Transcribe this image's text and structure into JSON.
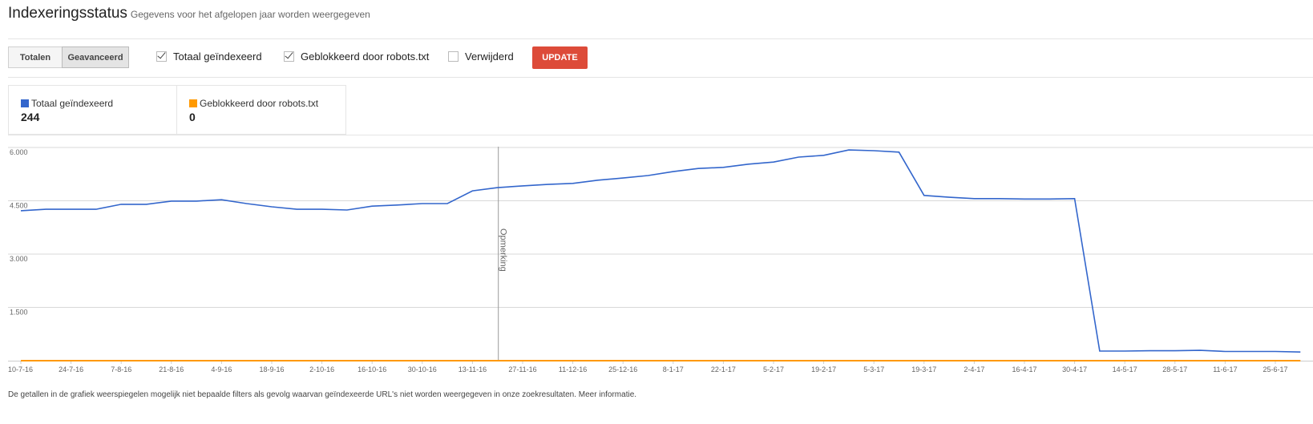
{
  "header": {
    "title": "Indexeringsstatus",
    "subtitle": "Gegevens voor het afgelopen jaar worden weergegeven"
  },
  "toolbar": {
    "tabs": [
      "Totalen",
      "Geavanceerd"
    ],
    "checkboxes": [
      {
        "label": "Totaal geïndexeerd",
        "checked": true
      },
      {
        "label": "Geblokkeerd door robots.txt",
        "checked": true
      },
      {
        "label": "Verwijderd",
        "checked": false
      }
    ],
    "button": "UPDATE"
  },
  "summary": {
    "values": [
      244,
      0
    ]
  },
  "chart_data": {
    "type": "line",
    "categories": [
      "10-7-16",
      null,
      "24-7-16",
      null,
      "7-8-16",
      null,
      "21-8-16",
      null,
      "4-9-16",
      null,
      "18-9-16",
      null,
      "2-10-16",
      null,
      "16-10-16",
      null,
      "30-10-16",
      null,
      "13-11-16",
      null,
      "27-11-16",
      null,
      "11-12-16",
      null,
      "25-12-16",
      null,
      "8-1-17",
      null,
      "22-1-17",
      null,
      "5-2-17",
      null,
      "19-2-17",
      null,
      "5-3-17",
      null,
      "19-3-17",
      null,
      "2-4-17",
      null,
      "16-4-17",
      null,
      "30-4-17",
      null,
      "14-5-17",
      null,
      "28-5-17",
      null,
      "11-6-17",
      null,
      "25-6-17",
      null
    ],
    "series": [
      {
        "name": "Totaal geïndexeerd",
        "color": "#3366cc",
        "values": [
          4220,
          4260,
          4260,
          4260,
          4400,
          4400,
          4490,
          4490,
          4530,
          4420,
          4330,
          4260,
          4260,
          4240,
          4350,
          4380,
          4420,
          4420,
          4780,
          4870,
          4920,
          4960,
          4990,
          5080,
          5140,
          5210,
          5320,
          5410,
          5440,
          5530,
          5590,
          5730,
          5780,
          5930,
          5910,
          5870,
          4650,
          4600,
          4560,
          4560,
          4550,
          4550,
          4560,
          270,
          270,
          280,
          280,
          290,
          260,
          260,
          260,
          244
        ]
      },
      {
        "name": "Geblokkeerd door robots.txt",
        "color": "#ff9900",
        "values": [
          0,
          0,
          0,
          0,
          0,
          0,
          0,
          0,
          0,
          0,
          0,
          0,
          0,
          0,
          0,
          0,
          0,
          0,
          0,
          0,
          0,
          0,
          0,
          0,
          0,
          0,
          0,
          0,
          0,
          0,
          0,
          0,
          0,
          0,
          0,
          0,
          0,
          0,
          0,
          0,
          0,
          0,
          0,
          0,
          0,
          0,
          0,
          0,
          0,
          0,
          0,
          0
        ]
      }
    ],
    "ylim": [
      0,
      6000
    ],
    "yticks": [
      {
        "value": 1500,
        "label": "1.500"
      },
      {
        "value": 3000,
        "label": "3.000"
      },
      {
        "value": 4500,
        "label": "4.500"
      },
      {
        "value": 6000,
        "label": "6.000"
      }
    ],
    "grid": true,
    "annotation": "Opmerking"
  },
  "footer": "De getallen in de grafiek weerspiegelen mogelijk niet bepaalde filters als gevolg waarvan geïndexeerde URL's niet worden weergegeven in onze zoekresultaten. Meer informatie."
}
